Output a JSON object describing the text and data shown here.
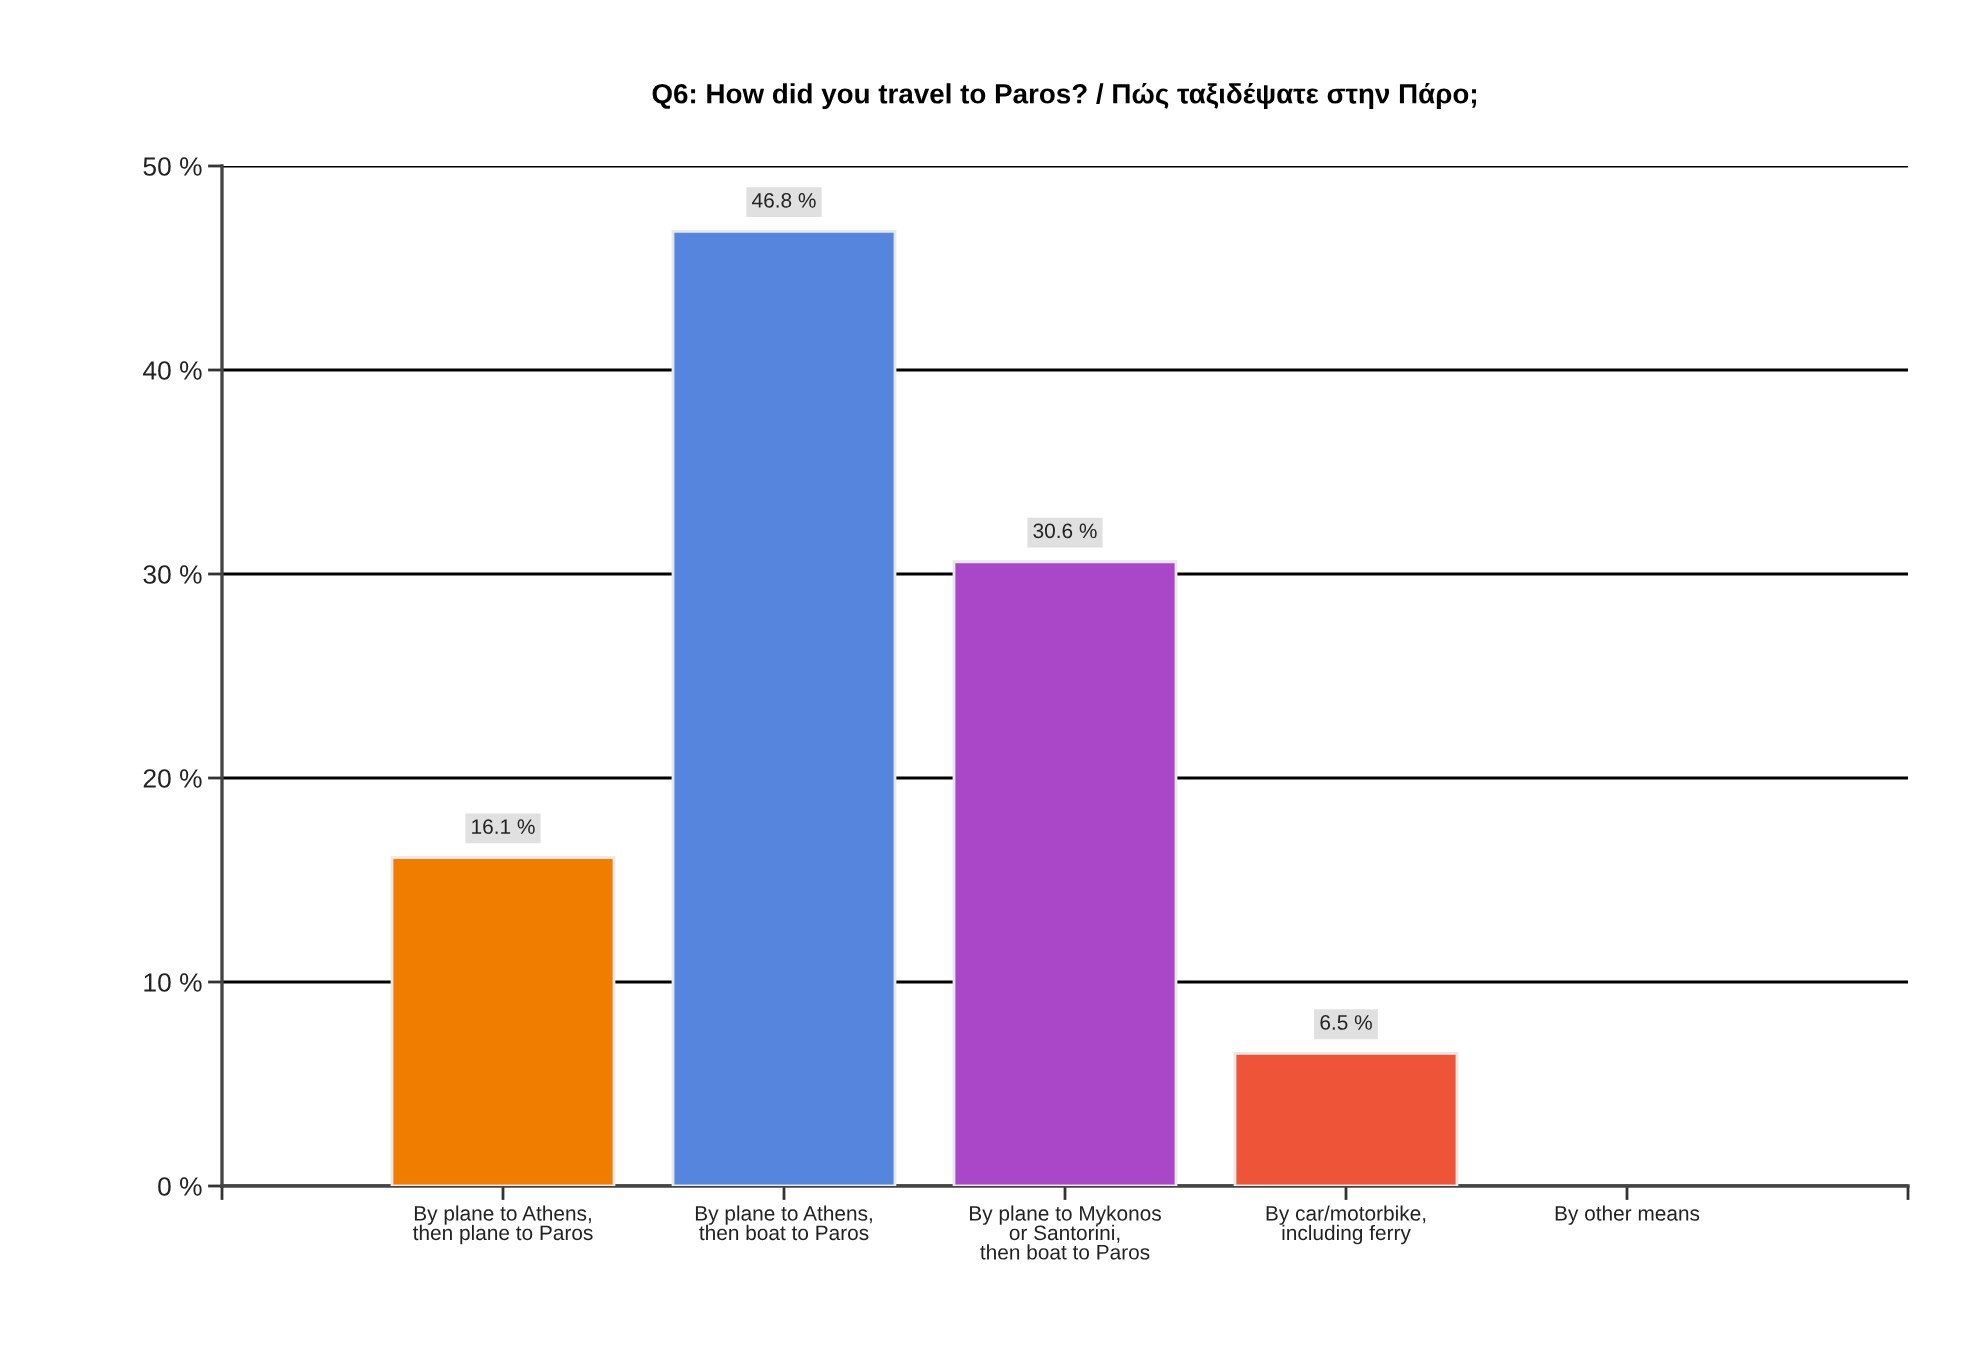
{
  "chart_data": {
    "type": "bar",
    "title": "Q6: How did you travel to Paros? / Πώς ταξιδέψατε στην Πάρο;",
    "categories": [
      "By plane to Athens,\nthen plane to Paros",
      "By plane to Athens,\nthen boat to Paros",
      "By plane to Mykonos\nor Santorini,\nthen boat to Paros",
      "By car/motorbike,\nincluding ferry",
      "By other means"
    ],
    "values": [
      16.1,
      46.8,
      30.6,
      6.5,
      0
    ],
    "colors": [
      "#f07c00",
      "#5585dc",
      "#aa46c8",
      "#ee5538",
      null
    ],
    "value_labels": [
      "16.1 %",
      "46.8 %",
      "30.6 %",
      "6.5 %",
      null
    ],
    "ylim": [
      0,
      50
    ],
    "yticks": [
      {
        "value": 0,
        "label": "0 %"
      },
      {
        "value": 10,
        "label": "10 %"
      },
      {
        "value": 20,
        "label": "20 %"
      },
      {
        "value": 30,
        "label": "30 %"
      },
      {
        "value": 40,
        "label": "40 %"
      },
      {
        "value": 50,
        "label": "50 %"
      }
    ],
    "grid": "y",
    "legend": false
  }
}
